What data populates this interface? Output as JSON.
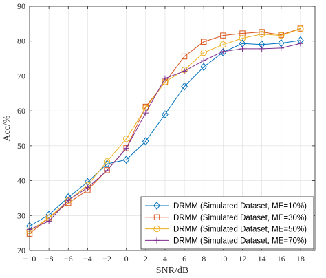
{
  "chart_data": {
    "type": "line",
    "xlabel": "SNR/dB",
    "ylabel": "Acc/%",
    "xlim": [
      -10,
      19.5
    ],
    "ylim": [
      20,
      90
    ],
    "xticks": [
      -10,
      -8,
      -6,
      -4,
      -2,
      0,
      2,
      4,
      6,
      8,
      10,
      12,
      14,
      16,
      18
    ],
    "xtick_labels": [
      "−10",
      "−8",
      "−6",
      "−4",
      "−2",
      "0",
      "2",
      "4",
      "6",
      "8",
      "10",
      "12",
      "14",
      "16",
      "18"
    ],
    "yticks": [
      20,
      30,
      40,
      50,
      60,
      70,
      80,
      90
    ],
    "ytick_labels": [
      "20",
      "30",
      "40",
      "50",
      "60",
      "70",
      "80",
      "90"
    ],
    "grid": true,
    "legend_position": "bottom-right",
    "x": [
      -10,
      -8,
      -6,
      -4,
      -2,
      0,
      2,
      4,
      6,
      8,
      10,
      12,
      14,
      16,
      18
    ],
    "series": [
      {
        "name": "DRMM (Simulated Dataset, ME=10%)",
        "color": "#0072BD",
        "marker": "diamond",
        "values": [
          27.0,
          30.2,
          35.2,
          39.6,
          44.8,
          46.0,
          51.3,
          59.0,
          67.0,
          72.6,
          76.8,
          79.3,
          79.0,
          79.4,
          80.2
        ]
      },
      {
        "name": "DRMM (Simulated Dataset, ME=30%)",
        "color": "#D95319",
        "marker": "square",
        "values": [
          24.8,
          29.4,
          33.6,
          37.3,
          43.0,
          49.3,
          61.2,
          68.2,
          75.6,
          79.8,
          81.6,
          82.2,
          82.6,
          81.8,
          83.6
        ]
      },
      {
        "name": "DRMM (Simulated Dataset, ME=50%)",
        "color": "#EDB120",
        "marker": "circle",
        "values": [
          25.6,
          29.4,
          34.3,
          38.7,
          45.5,
          52.0,
          60.8,
          68.3,
          71.7,
          76.7,
          79.0,
          80.8,
          82.0,
          81.6,
          83.5
        ]
      },
      {
        "name": "DRMM (Simulated Dataset, ME=70%)",
        "color": "#7E2F8E",
        "marker": "plus",
        "values": [
          26.0,
          28.4,
          34.4,
          38.0,
          42.9,
          49.3,
          59.4,
          69.3,
          71.4,
          74.4,
          77.0,
          77.8,
          77.8,
          78.0,
          79.3
        ]
      }
    ]
  }
}
